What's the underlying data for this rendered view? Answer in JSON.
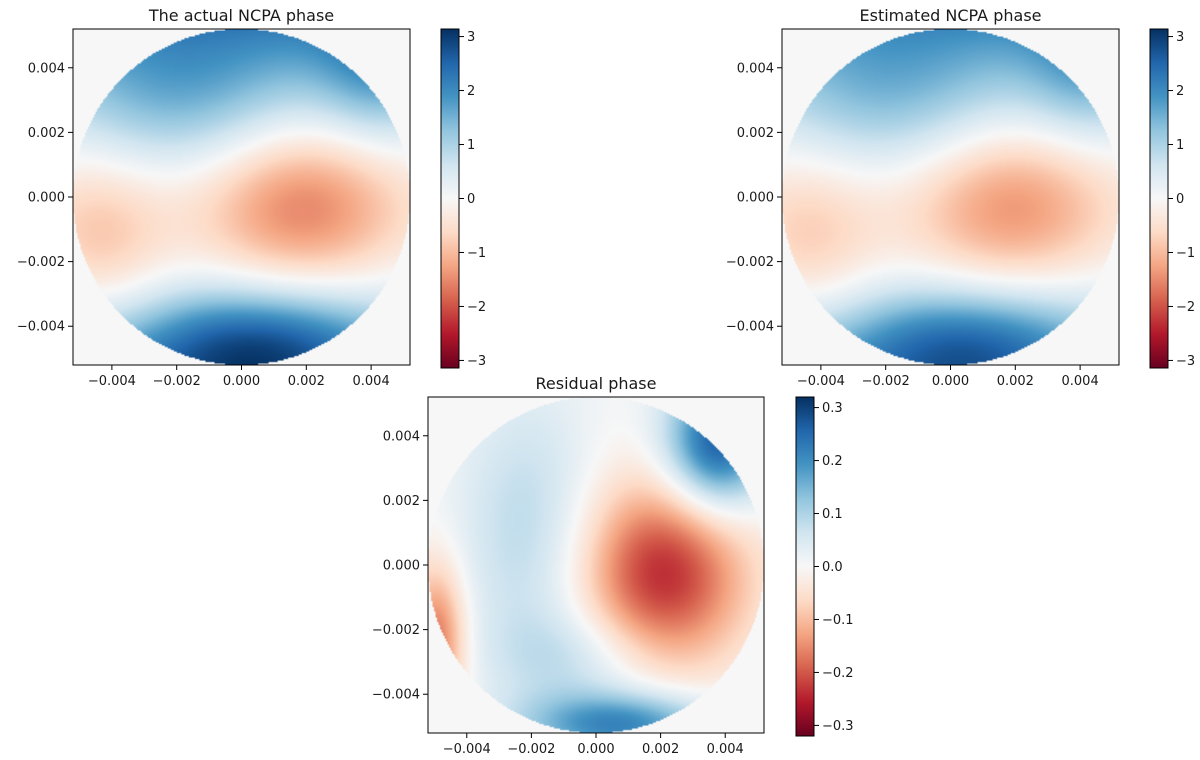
{
  "chart_data": [
    {
      "type": "heatmap",
      "title": "The actual NCPA phase",
      "xlim": [
        -0.0052,
        0.0052
      ],
      "ylim": [
        -0.0052,
        0.0052
      ],
      "xticks": [
        -0.004,
        -0.002,
        0.0,
        0.002,
        0.004
      ],
      "yticks": [
        -0.004,
        -0.002,
        0.0,
        0.002,
        0.004
      ],
      "xtick_labels": [
        "−0.004",
        "−0.002",
        "0.000",
        "0.002",
        "0.004"
      ],
      "ytick_labels": [
        "−0.004",
        "−0.002",
        "0.000",
        "0.002",
        "0.004"
      ],
      "aperture_radius": 0.0052,
      "colormap": "RdBu",
      "colorbar": {
        "min": -3.14,
        "max": 3.14,
        "ticks": [
          3,
          2,
          1,
          0,
          -1,
          -2,
          -3
        ],
        "tick_labels": [
          "3",
          "2",
          "1",
          "0",
          "−1",
          "−2",
          "−3"
        ]
      },
      "field_scale": 1.0,
      "features": "negative lobe near (0.0018, -0.0003) about -1.3; positive bands top and bottom up to about +2.8"
    },
    {
      "type": "heatmap",
      "title": "Estimated NCPA phase",
      "xlim": [
        -0.0052,
        0.0052
      ],
      "ylim": [
        -0.0052,
        0.0052
      ],
      "xticks": [
        -0.004,
        -0.002,
        0.0,
        0.002,
        0.004
      ],
      "yticks": [
        -0.004,
        -0.002,
        0.0,
        0.002,
        0.004
      ],
      "xtick_labels": [
        "−0.004",
        "−0.002",
        "0.000",
        "0.002",
        "0.004"
      ],
      "ytick_labels": [
        "−0.004",
        "−0.002",
        "0.000",
        "0.002",
        "0.004"
      ],
      "aperture_radius": 0.0052,
      "colormap": "RdBu",
      "colorbar": {
        "min": -3.14,
        "max": 3.14,
        "ticks": [
          3,
          2,
          1,
          0,
          -1,
          -2,
          -3
        ],
        "tick_labels": [
          "3",
          "2",
          "1",
          "0",
          "−1",
          "−2",
          "−3"
        ]
      },
      "field_scale": 0.9,
      "features": "same structure as actual phase with slightly lower amplitude"
    },
    {
      "type": "heatmap",
      "title": "Residual phase",
      "xlim": [
        -0.0052,
        0.0052
      ],
      "ylim": [
        -0.0052,
        0.0052
      ],
      "xticks": [
        -0.004,
        -0.002,
        0.0,
        0.002,
        0.004
      ],
      "yticks": [
        -0.004,
        -0.002,
        0.0,
        0.002,
        0.004
      ],
      "xtick_labels": [
        "−0.004",
        "−0.002",
        "0.000",
        "0.002",
        "0.004"
      ],
      "ytick_labels": [
        "−0.004",
        "−0.002",
        "0.000",
        "0.002",
        "0.004"
      ],
      "aperture_radius": 0.0052,
      "colormap": "RdBu",
      "colorbar": {
        "min": -0.32,
        "max": 0.32,
        "ticks": [
          0.3,
          0.2,
          0.1,
          0.0,
          -0.1,
          -0.2,
          -0.3
        ],
        "tick_labels": [
          "0.3",
          "0.2",
          "0.1",
          "0.0",
          "−0.1",
          "−0.2",
          "−0.3"
        ]
      },
      "field_scale": 0.1,
      "features": "minimum about -0.25 near (0.002, -0.0003); maxima about +0.3 at upper-right rim and bottom"
    }
  ]
}
